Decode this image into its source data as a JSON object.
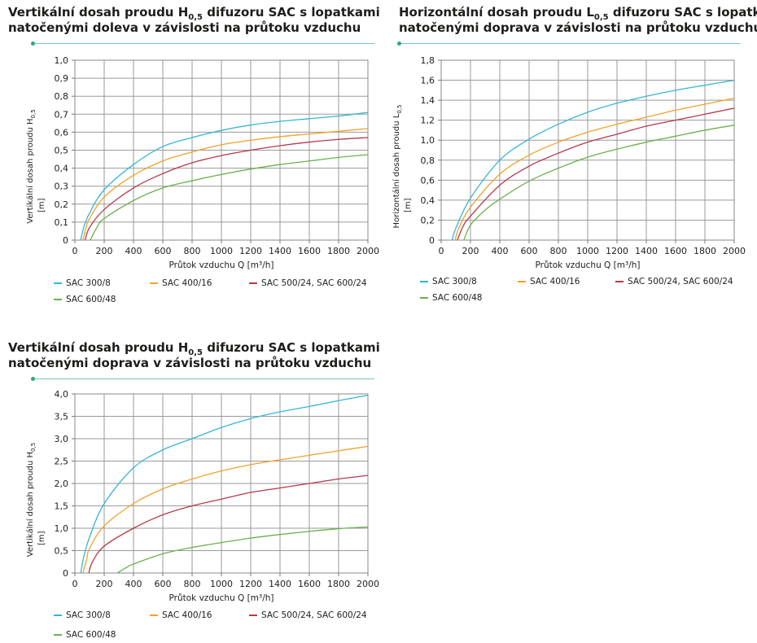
{
  "legend_series": [
    {
      "name": "SAC 300/8",
      "color": "#35b6d4"
    },
    {
      "name": "SAC 400/16",
      "color": "#f0a22a"
    },
    {
      "name": "SAC 500/24,  SAC 600/24",
      "color": "#b5394a"
    },
    {
      "name": "SAC 600/48",
      "color": "#6ab04c"
    }
  ],
  "chart_data": [
    {
      "type": "line",
      "title": "Vertikální dosah proudu H",
      "title_sub": "0,5",
      "title_rest": " difuzoru SAC s lopatkami",
      "title_line2": "natočenými doleva v závislosti na průtoku vzduchu",
      "ylabel": "Vertikální dosah proudu H",
      "ylabel_sub": "0,5",
      "yunit": "[m]",
      "xlabel": "Průtok vzduchu Q [m³/h]",
      "xlim": [
        0,
        2000
      ],
      "ylim": [
        0,
        1.0
      ],
      "xticks": [
        "0",
        "200",
        "400",
        "600",
        "800",
        "1000",
        "1200",
        "1400",
        "1600",
        "1800",
        "2000"
      ],
      "yticks": [
        "0",
        "0,1",
        "0,2",
        "0,3",
        "0,4",
        "0,5",
        "0,6",
        "0,7",
        "0,8",
        "0,9",
        "1,0"
      ],
      "grid": true,
      "series": [
        {
          "name": "SAC 300/8",
          "x": [
            40,
            60,
            100,
            200,
            400,
            600,
            800,
            1000,
            1200,
            1400,
            1600,
            1800,
            2000
          ],
          "y": [
            0,
            0.07,
            0.15,
            0.28,
            0.42,
            0.52,
            0.57,
            0.61,
            0.64,
            0.66,
            0.675,
            0.69,
            0.71
          ]
        },
        {
          "name": "SAC 400/16",
          "x": [
            55,
            80,
            100,
            200,
            400,
            600,
            800,
            1000,
            1200,
            1400,
            1600,
            1800,
            2000
          ],
          "y": [
            0,
            0.08,
            0.12,
            0.24,
            0.36,
            0.44,
            0.49,
            0.53,
            0.555,
            0.575,
            0.59,
            0.605,
            0.62
          ]
        },
        {
          "name": "SAC 500/24,  SAC 600/24",
          "x": [
            70,
            100,
            200,
            400,
            600,
            800,
            1000,
            1200,
            1400,
            1600,
            1800,
            2000
          ],
          "y": [
            0,
            0.07,
            0.17,
            0.29,
            0.37,
            0.43,
            0.47,
            0.5,
            0.525,
            0.545,
            0.56,
            0.57
          ]
        },
        {
          "name": "SAC 600/48",
          "x": [
            105,
            150,
            200,
            400,
            600,
            800,
            1000,
            1200,
            1400,
            1600,
            1800,
            2000
          ],
          "y": [
            0,
            0.07,
            0.12,
            0.22,
            0.29,
            0.33,
            0.365,
            0.395,
            0.42,
            0.44,
            0.46,
            0.475
          ]
        }
      ]
    },
    {
      "type": "line",
      "title": "Horizontální dosah proudu L",
      "title_sub": "0,5",
      "title_rest": " difuzoru SAC s lopatkami",
      "title_line2": "natočenými doprava v závislosti na průtoku vzduchu",
      "ylabel": "Horizontální dosah proudu L",
      "ylabel_sub": "0,5",
      "yunit": "[m]",
      "xlabel": "Průtok vzduchu Q [m³/h]",
      "xlim": [
        0,
        2000
      ],
      "ylim": [
        0,
        1.8
      ],
      "xticks": [
        "0",
        "200",
        "400",
        "600",
        "800",
        "1000",
        "1200",
        "1400",
        "1600",
        "1800",
        "2000"
      ],
      "yticks": [
        "0",
        "0,2",
        "0,4",
        "0,6",
        "0,8",
        "1,0",
        "1,2",
        "1,4",
        "1,6",
        "1,8"
      ],
      "grid": true,
      "series": [
        {
          "name": "SAC 300/8",
          "x": [
            75,
            100,
            200,
            400,
            600,
            800,
            1000,
            1200,
            1400,
            1600,
            1800,
            2000
          ],
          "y": [
            0,
            0.12,
            0.42,
            0.8,
            1.01,
            1.16,
            1.28,
            1.37,
            1.44,
            1.5,
            1.55,
            1.6
          ]
        },
        {
          "name": "SAC 400/16",
          "x": [
            95,
            120,
            200,
            400,
            600,
            800,
            1000,
            1200,
            1400,
            1600,
            1800,
            2000
          ],
          "y": [
            0,
            0.12,
            0.33,
            0.66,
            0.85,
            0.98,
            1.08,
            1.16,
            1.23,
            1.3,
            1.36,
            1.42
          ]
        },
        {
          "name": "SAC 500/24,  SAC 600/24",
          "x": [
            110,
            150,
            200,
            400,
            600,
            800,
            1000,
            1200,
            1400,
            1600,
            1800,
            2000
          ],
          "y": [
            0,
            0.14,
            0.24,
            0.55,
            0.74,
            0.87,
            0.98,
            1.06,
            1.14,
            1.2,
            1.26,
            1.32
          ]
        },
        {
          "name": "SAC 600/48",
          "x": [
            155,
            200,
            300,
            400,
            600,
            800,
            1000,
            1200,
            1400,
            1600,
            1800,
            2000
          ],
          "y": [
            0,
            0.15,
            0.3,
            0.41,
            0.59,
            0.72,
            0.83,
            0.91,
            0.98,
            1.04,
            1.1,
            1.15
          ]
        }
      ]
    },
    {
      "type": "line",
      "title": "Vertikální dosah proudu H",
      "title_sub": "0,5",
      "title_rest": " difuzoru SAC s lopatkami",
      "title_line2": "natočenými doprava v závislosti na průtoku vzduchu",
      "ylabel": "Vertikální dosah proudu H",
      "ylabel_sub": "0,5",
      "yunit": "[m]",
      "xlabel": "Průtok vzduchu Q [m³/h]",
      "xlim": [
        0,
        2000
      ],
      "ylim": [
        0,
        4.0
      ],
      "xticks": [
        "0",
        "200",
        "400",
        "600",
        "800",
        "1000",
        "1200",
        "1400",
        "1600",
        "1800",
        "2000"
      ],
      "yticks": [
        "0",
        "0,5",
        "1,0",
        "1,5",
        "2,0",
        "2,5",
        "3,0",
        "3,5",
        "4,0"
      ],
      "grid": true,
      "series": [
        {
          "name": "SAC 300/8",
          "x": [
            40,
            60,
            100,
            200,
            400,
            600,
            800,
            1000,
            1200,
            1400,
            1600,
            1800,
            2000
          ],
          "y": [
            0,
            0.35,
            0.8,
            1.55,
            2.35,
            2.75,
            3.0,
            3.25,
            3.45,
            3.6,
            3.72,
            3.85,
            3.97
          ]
        },
        {
          "name": "SAC 400/16",
          "x": [
            55,
            80,
            100,
            200,
            400,
            600,
            800,
            1000,
            1200,
            1400,
            1600,
            1800,
            2000
          ],
          "y": [
            0,
            0.3,
            0.55,
            1.05,
            1.55,
            1.88,
            2.1,
            2.28,
            2.42,
            2.53,
            2.63,
            2.73,
            2.83
          ]
        },
        {
          "name": "SAC 500/24,  SAC 600/24",
          "x": [
            95,
            120,
            200,
            400,
            600,
            800,
            1000,
            1200,
            1400,
            1600,
            1800,
            2000
          ],
          "y": [
            0,
            0.25,
            0.6,
            1.0,
            1.3,
            1.5,
            1.65,
            1.8,
            1.9,
            2.0,
            2.1,
            2.18
          ]
        },
        {
          "name": "SAC 600/48",
          "x": [
            290,
            350,
            400,
            600,
            800,
            1000,
            1200,
            1400,
            1600,
            1800,
            2000
          ],
          "y": [
            0,
            0.12,
            0.2,
            0.43,
            0.57,
            0.68,
            0.78,
            0.86,
            0.93,
            0.99,
            1.03
          ]
        }
      ]
    }
  ]
}
